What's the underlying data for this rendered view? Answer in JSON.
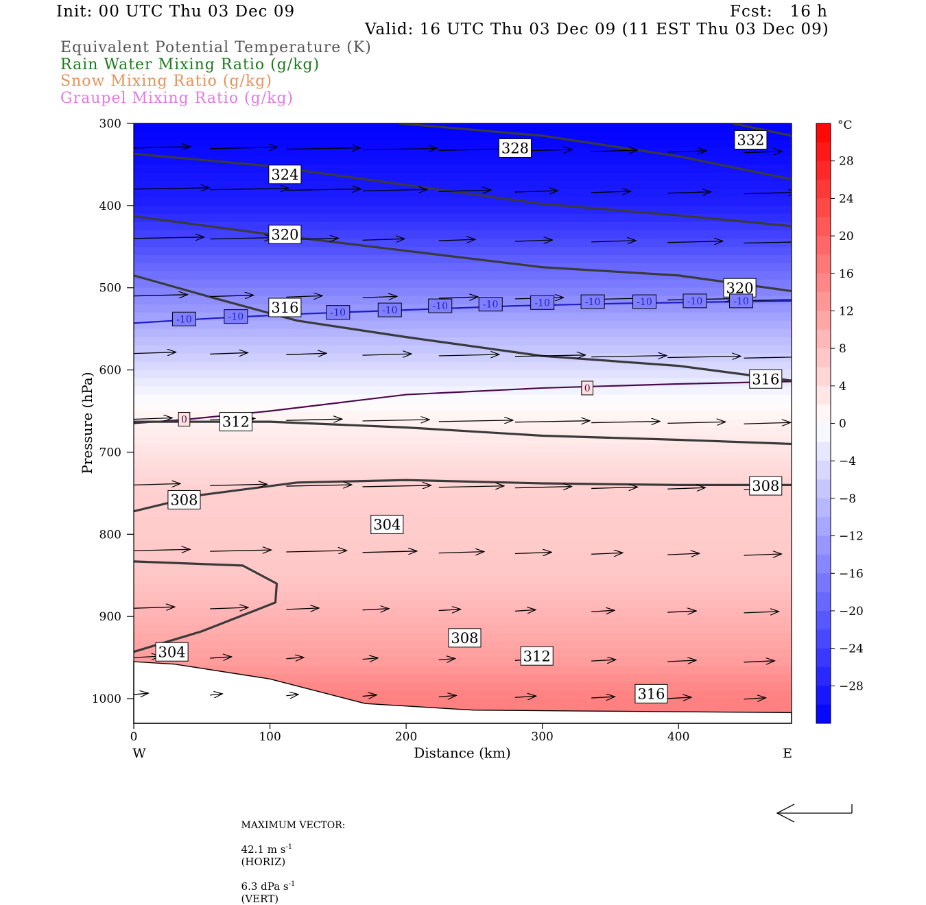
{
  "header": {
    "init": "Init: 00 UTC Thu 03 Dec 09",
    "fcst": "Fcst:   16 h",
    "valid": "Valid: 16 UTC Thu 03 Dec 09 (11 EST Thu 03 Dec 09)"
  },
  "fields": [
    {
      "label": "Equivalent Potential Temperature (K)",
      "color": "#555555"
    },
    {
      "label": "Rain Water Mixing Ratio (g/kg)",
      "color": "#1b7a1b"
    },
    {
      "label": "Snow Mixing Ratio (g/kg)",
      "color": "#e8915c"
    },
    {
      "label": "Graupel Mixing Ratio (g/kg)",
      "color": "#e57ae5"
    }
  ],
  "footer": {
    "max_vector_label": "MAXIMUM VECTOR:",
    "horiz_value": "42.1 m s",
    "horiz_exp": "-1",
    "horiz_tag": "(HORIZ)",
    "vert_value": "6.3 dPa s",
    "vert_exp": "-1",
    "vert_tag": "(VERT)"
  },
  "chart_data": {
    "type": "cross-section",
    "xlabel": "Distance (km)",
    "ylabel": "Pressure (hPa)",
    "xlim": [
      0,
      483
    ],
    "ylim": [
      1030,
      300
    ],
    "xticks": [
      0,
      100,
      200,
      300,
      400
    ],
    "yticks": [
      300,
      400,
      500,
      600,
      700,
      800,
      900,
      1000
    ],
    "x_end_labels": {
      "left": "W",
      "right": "E"
    },
    "colorbar": {
      "unit": "°C",
      "range": [
        -32,
        32
      ],
      "ticks": [
        28,
        24,
        20,
        16,
        12,
        8,
        4,
        0,
        -4,
        -8,
        -12,
        -16,
        -20,
        -24,
        -28
      ]
    },
    "temperature_field": {
      "description_points": [
        {
          "p": 300,
          "t": -32
        },
        {
          "p": 400,
          "t": -28
        },
        {
          "p": 500,
          "t": -16
        },
        {
          "p": 550,
          "t": -10
        },
        {
          "p": 620,
          "t": -2
        },
        {
          "p": 650,
          "t": 1
        },
        {
          "p": 750,
          "t": 6
        },
        {
          "p": 850,
          "t": 7
        },
        {
          "p": 950,
          "t": 12
        },
        {
          "p": 1000,
          "t": 16
        }
      ]
    },
    "temperature_contours": [
      {
        "label": "-10",
        "points": [
          [
            0,
            543
          ],
          [
            60,
            537
          ],
          [
            120,
            532
          ],
          [
            200,
            527
          ],
          [
            280,
            522
          ],
          [
            360,
            519
          ],
          [
            440,
            517
          ],
          [
            483,
            516
          ]
        ]
      },
      {
        "label": "0",
        "points": [
          [
            0,
            665
          ],
          [
            40,
            660
          ],
          [
            100,
            650
          ],
          [
            200,
            630
          ],
          [
            300,
            622
          ],
          [
            400,
            617
          ],
          [
            483,
            614
          ]
        ]
      }
    ],
    "theta_e_contours": [
      {
        "label": "332",
        "points": [
          [
            440,
            300
          ],
          [
            483,
            315
          ]
        ]
      },
      {
        "label": "328",
        "points": [
          [
            195,
            300
          ],
          [
            300,
            315
          ],
          [
            400,
            340
          ],
          [
            483,
            368
          ]
        ]
      },
      {
        "label": "324",
        "points": [
          [
            0,
            337
          ],
          [
            100,
            352
          ],
          [
            200,
            375
          ],
          [
            300,
            398
          ],
          [
            400,
            412
          ],
          [
            483,
            425
          ]
        ]
      },
      {
        "label": "320",
        "points": [
          [
            0,
            413
          ],
          [
            100,
            435
          ],
          [
            200,
            455
          ],
          [
            300,
            475
          ],
          [
            400,
            485
          ],
          [
            483,
            504
          ]
        ]
      },
      {
        "label": "316",
        "points": [
          [
            0,
            485
          ],
          [
            60,
            513
          ],
          [
            120,
            540
          ],
          [
            200,
            560
          ],
          [
            300,
            583
          ],
          [
            400,
            595
          ],
          [
            483,
            613
          ]
        ]
      },
      {
        "label": "312",
        "points": [
          [
            0,
            663
          ],
          [
            100,
            663
          ],
          [
            200,
            670
          ],
          [
            300,
            680
          ],
          [
            400,
            685
          ],
          [
            483,
            690
          ]
        ]
      },
      {
        "label": "308",
        "points": [
          [
            0,
            772
          ],
          [
            50,
            752
          ],
          [
            120,
            737
          ],
          [
            200,
            734
          ],
          [
            300,
            738
          ],
          [
            400,
            740
          ],
          [
            483,
            740
          ]
        ]
      },
      {
        "label": "304",
        "points": [
          [
            0,
            943
          ],
          [
            50,
            918
          ],
          [
            104,
            883
          ],
          [
            105,
            860
          ],
          [
            80,
            838
          ],
          [
            0,
            833
          ]
        ]
      }
    ],
    "wind_vector_max": {
      "horiz": 42.1,
      "vert": 6.3
    }
  }
}
